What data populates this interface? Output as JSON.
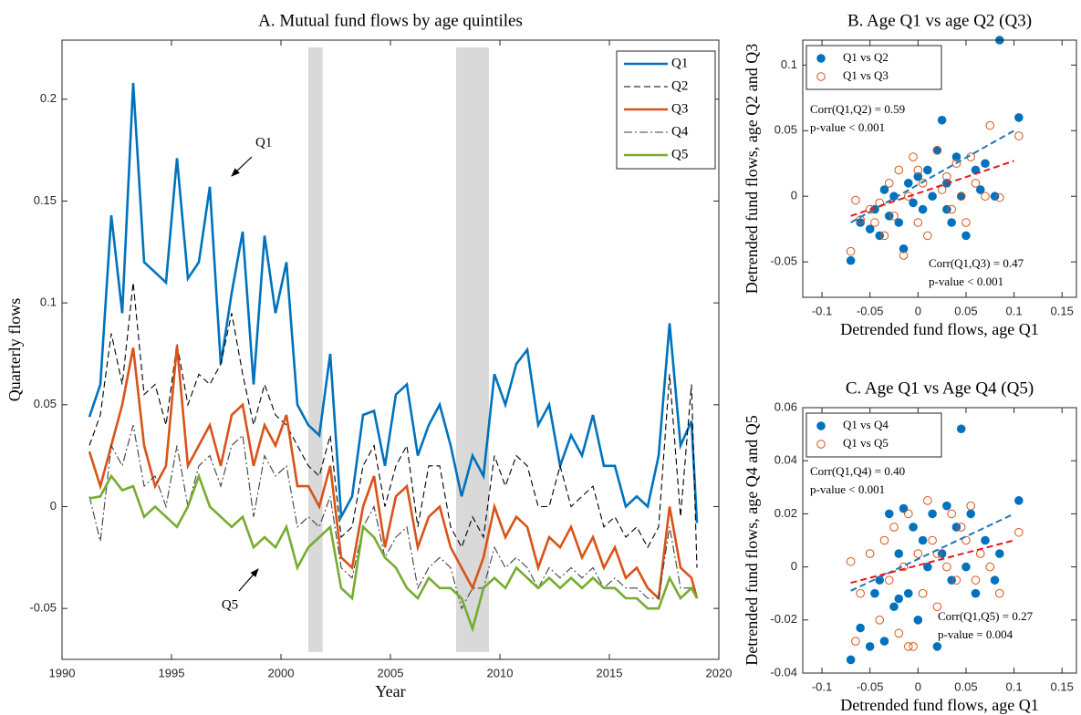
{
  "chart_data": [
    {
      "type": "line",
      "title": "A. Mutual fund flows by age quintiles",
      "xlabel": "Year",
      "ylabel": "Quarterly flows",
      "xlim": [
        1990,
        2020
      ],
      "xticks": [
        1990,
        1995,
        2000,
        2005,
        2010,
        2015,
        2020
      ],
      "ylim": [
        -0.075,
        0.229
      ],
      "yticks": [
        -0.05,
        0,
        0.05,
        0.1,
        0.15,
        0.2
      ],
      "legend": "upper right",
      "shaded_periods": [
        [
          2001.25,
          2001.9
        ],
        [
          2008,
          2009.5
        ]
      ],
      "annotations": [
        "Q1",
        "Q5"
      ],
      "x": [
        1991.25,
        1991.75,
        1992.25,
        1992.75,
        1993.25,
        1993.75,
        1994.25,
        1994.75,
        1995.25,
        1995.75,
        1996.25,
        1996.75,
        1997.25,
        1997.75,
        1998.25,
        1998.75,
        1999.25,
        1999.75,
        2000.25,
        2000.75,
        2001.25,
        2001.75,
        2002.25,
        2002.75,
        2003.25,
        2003.75,
        2004.25,
        2004.75,
        2005.25,
        2005.75,
        2006.25,
        2006.75,
        2007.25,
        2007.75,
        2008.25,
        2008.75,
        2009.25,
        2009.75,
        2010.25,
        2010.75,
        2011.25,
        2011.75,
        2012.25,
        2012.75,
        2013.25,
        2013.75,
        2014.25,
        2014.75,
        2015.25,
        2015.75,
        2016.25,
        2016.75,
        2017.25,
        2017.75,
        2018.25,
        2018.75,
        2019
      ],
      "series": [
        {
          "name": "Q1",
          "color": "#0072bd",
          "line_style": "solid",
          "values": [
            0.044,
            0.06,
            0.143,
            0.095,
            0.208,
            0.12,
            0.115,
            0.11,
            0.171,
            0.112,
            0.12,
            0.157,
            0.07,
            0.105,
            0.135,
            0.06,
            0.133,
            0.095,
            0.12,
            0.05,
            0.04,
            0.035,
            0.075,
            -0.005,
            0.005,
            0.045,
            0.047,
            0.02,
            0.055,
            0.06,
            0.025,
            0.04,
            0.05,
            0.03,
            0.005,
            0.025,
            0.015,
            0.065,
            0.05,
            0.07,
            0.077,
            0.04,
            0.05,
            0.02,
            0.035,
            0.025,
            0.045,
            0.02,
            0.02,
            0.0,
            0.005,
            0.0,
            0.025,
            0.09,
            0.03,
            0.042,
            -0.008
          ]
        },
        {
          "name": "Q2",
          "color": "#000000",
          "line_style": "dashed",
          "values": [
            0.03,
            0.045,
            0.085,
            0.06,
            0.11,
            0.055,
            0.06,
            0.04,
            0.08,
            0.05,
            0.065,
            0.06,
            0.07,
            0.095,
            0.065,
            0.04,
            0.06,
            0.045,
            0.04,
            0.03,
            0.02,
            0.015,
            0.035,
            -0.015,
            -0.01,
            0.02,
            0.03,
            0.0,
            0.02,
            0.03,
            -0.01,
            0.02,
            0.02,
            -0.01,
            -0.02,
            -0.005,
            -0.015,
            0.025,
            0.01,
            0.025,
            0.02,
            0.0,
            0.0,
            0.02,
            0.0,
            0.005,
            0.01,
            -0.01,
            -0.005,
            -0.015,
            -0.01,
            -0.02,
            -0.01,
            0.065,
            -0.005,
            0.06,
            -0.03
          ]
        },
        {
          "name": "Q3",
          "color": "#d95319",
          "line_style": "solid",
          "values": [
            0.027,
            0.01,
            0.03,
            0.05,
            0.078,
            0.03,
            0.01,
            0.02,
            0.079,
            0.02,
            0.03,
            0.04,
            0.02,
            0.045,
            0.05,
            0.02,
            0.04,
            0.03,
            0.045,
            0.01,
            0.01,
            0.0,
            0.02,
            -0.025,
            -0.03,
            0.0,
            0.015,
            -0.02,
            0.005,
            0.01,
            -0.02,
            -0.005,
            0.0,
            -0.02,
            -0.03,
            -0.04,
            -0.025,
            0.0,
            -0.015,
            -0.005,
            -0.01,
            -0.03,
            -0.015,
            -0.02,
            -0.01,
            -0.025,
            -0.015,
            -0.03,
            -0.02,
            -0.035,
            -0.03,
            -0.04,
            -0.045,
            0.0,
            -0.03,
            -0.035,
            -0.045
          ]
        },
        {
          "name": "Q4",
          "color": "#404040",
          "line_style": "dash-dot",
          "values": [
            0.005,
            -0.017,
            0.03,
            0.02,
            0.04,
            0.01,
            0.015,
            0.0,
            0.03,
            0.0,
            0.02,
            0.025,
            0.01,
            0.03,
            0.035,
            -0.005,
            0.025,
            0.015,
            0.02,
            -0.01,
            -0.005,
            -0.01,
            0.005,
            -0.03,
            -0.035,
            -0.01,
            0.0,
            -0.025,
            -0.015,
            -0.01,
            -0.04,
            -0.03,
            -0.025,
            -0.03,
            -0.05,
            -0.04,
            -0.04,
            -0.02,
            -0.03,
            -0.025,
            -0.03,
            -0.04,
            -0.03,
            -0.035,
            -0.03,
            -0.035,
            -0.03,
            -0.04,
            -0.035,
            -0.04,
            -0.04,
            -0.045,
            -0.045,
            -0.01,
            -0.04,
            -0.04,
            -0.045
          ]
        },
        {
          "name": "Q5",
          "color": "#77ac30",
          "line_style": "solid",
          "values": [
            0.004,
            0.005,
            0.015,
            0.008,
            0.01,
            -0.005,
            0.0,
            -0.005,
            -0.01,
            0.0,
            0.015,
            0.0,
            -0.005,
            -0.01,
            -0.005,
            -0.02,
            -0.015,
            -0.02,
            -0.01,
            -0.03,
            -0.02,
            -0.015,
            -0.01,
            -0.04,
            -0.045,
            -0.01,
            -0.015,
            -0.025,
            -0.03,
            -0.04,
            -0.045,
            -0.035,
            -0.04,
            -0.04,
            -0.045,
            -0.06,
            -0.04,
            -0.035,
            -0.04,
            -0.03,
            -0.035,
            -0.04,
            -0.035,
            -0.04,
            -0.035,
            -0.04,
            -0.035,
            -0.04,
            -0.04,
            -0.045,
            -0.045,
            -0.05,
            -0.05,
            -0.035,
            -0.045,
            -0.04,
            -0.045
          ]
        }
      ]
    },
    {
      "type": "scatter",
      "title": "B. Age Q1 vs age Q2 (Q3)",
      "xlabel": "Detrended fund flows, age Q1",
      "ylabel": "Detrended fund flows, age Q2 and Q3",
      "xlim": [
        -0.12,
        0.165
      ],
      "xticks": [
        -0.1,
        -0.05,
        0,
        0.05,
        0.1,
        0.15
      ],
      "ylim": [
        -0.077,
        0.119
      ],
      "yticks": [
        -0.05,
        0,
        0.05,
        0.1
      ],
      "legend": "upper left",
      "annotations": [
        "Corr(Q1,Q2) = 0.59",
        "p-value < 0.001",
        "Corr(Q1,Q3) = 0.47",
        "p-value < 0.001"
      ],
      "series": [
        {
          "name": "Q1 vs Q2",
          "color": "#0072bd",
          "marker": "filled",
          "x": [
            -0.07,
            -0.06,
            -0.05,
            -0.045,
            -0.04,
            -0.03,
            -0.025,
            -0.02,
            -0.015,
            -0.01,
            -0.005,
            0,
            0.005,
            0.01,
            0.015,
            0.02,
            0.025,
            0.03,
            0.035,
            0.04,
            0.045,
            0.05,
            0.06,
            0.065,
            0.07,
            0.08,
            0.085,
            0.105,
            -0.035,
            0.03
          ],
          "values": [
            -0.049,
            -0.02,
            -0.025,
            -0.01,
            -0.03,
            -0.015,
            0.0,
            -0.02,
            -0.04,
            0.01,
            -0.005,
            0.015,
            -0.01,
            0.02,
            0.0,
            0.035,
            0.058,
            0.01,
            -0.02,
            0.03,
            0.0,
            -0.03,
            0.02,
            0.005,
            0.025,
            0.0,
            0.119,
            0.06,
            0.005,
            -0.01
          ],
          "fit": {
            "x": [
              -0.07,
              0.1
            ],
            "y": [
              -0.02,
              0.05
            ]
          }
        },
        {
          "name": "Q1 vs Q3",
          "color": "#d95319",
          "marker": "open",
          "x": [
            -0.07,
            -0.065,
            -0.06,
            -0.05,
            -0.045,
            -0.04,
            -0.03,
            -0.025,
            -0.02,
            -0.015,
            -0.01,
            -0.005,
            0,
            0.005,
            0.01,
            0.02,
            0.025,
            0.03,
            0.035,
            0.04,
            0.045,
            0.05,
            0.055,
            0.06,
            0.07,
            0.075,
            0.085,
            0.105,
            0.0,
            -0.035
          ],
          "values": [
            -0.042,
            -0.003,
            -0.018,
            -0.01,
            -0.02,
            -0.005,
            0.01,
            -0.015,
            0.02,
            -0.045,
            0.0,
            0.03,
            -0.02,
            0.01,
            -0.03,
            0.035,
            0.005,
            0.015,
            -0.01,
            0.025,
            0.0,
            -0.02,
            0.03,
            0.01,
            0.0,
            0.054,
            -0.001,
            0.046,
            0.02,
            -0.03
          ],
          "fit": {
            "x": [
              -0.07,
              0.1
            ],
            "y": [
              -0.015,
              0.027
            ]
          }
        }
      ]
    },
    {
      "type": "scatter",
      "title": "C. Age Q1 vs Age Q4 (Q5)",
      "xlabel": "Detrended fund flows, age Q1",
      "ylabel": "Detrended fund flows, age Q4 and Q5",
      "xlim": [
        -0.12,
        0.165
      ],
      "xticks": [
        -0.1,
        -0.05,
        0,
        0.05,
        0.1,
        0.15
      ],
      "ylim": [
        -0.04,
        0.06
      ],
      "yticks": [
        -0.04,
        -0.02,
        0,
        0.02,
        0.04,
        0.06
      ],
      "legend": "upper left",
      "annotations": [
        "Corr(Q1,Q4) = 0.40",
        "p-value < 0.001",
        "Corr(Q1,Q5) = 0.27",
        "p-value = 0.004"
      ],
      "series": [
        {
          "name": "Q1 vs Q4",
          "color": "#0072bd",
          "marker": "filled",
          "x": [
            -0.07,
            -0.06,
            -0.05,
            -0.045,
            -0.04,
            -0.035,
            -0.03,
            -0.025,
            -0.02,
            -0.015,
            -0.01,
            -0.005,
            0,
            0.005,
            0.01,
            0.015,
            0.02,
            0.025,
            0.03,
            0.035,
            0.04,
            0.045,
            0.05,
            0.055,
            0.06,
            0.07,
            0.08,
            0.085,
            0.105,
            -0.02
          ],
          "values": [
            -0.035,
            -0.023,
            -0.03,
            -0.01,
            -0.005,
            -0.028,
            0.02,
            -0.015,
            0.005,
            0.022,
            -0.01,
            0.015,
            -0.02,
            0.01,
            0.0,
            0.02,
            -0.03,
            0.005,
            0.023,
            -0.005,
            0.015,
            0.052,
            0.0,
            0.02,
            -0.01,
            0.01,
            -0.005,
            0.005,
            0.025,
            -0.012
          ],
          "fit": {
            "x": [
              -0.07,
              0.1
            ],
            "y": [
              -0.009,
              0.02
            ]
          }
        },
        {
          "name": "Q1 vs Q5",
          "color": "#d95319",
          "marker": "open",
          "x": [
            -0.07,
            -0.065,
            -0.06,
            -0.05,
            -0.04,
            -0.035,
            -0.03,
            -0.025,
            -0.02,
            -0.015,
            -0.01,
            -0.005,
            0,
            0.005,
            0.01,
            0.015,
            0.02,
            0.03,
            0.035,
            0.04,
            0.045,
            0.05,
            0.055,
            0.06,
            0.065,
            0.075,
            0.085,
            0.105,
            -0.01,
            0.02
          ],
          "values": [
            0.002,
            -0.028,
            -0.01,
            0.005,
            -0.02,
            0.01,
            -0.005,
            0.015,
            -0.025,
            0.0,
            0.02,
            -0.03,
            0.005,
            -0.01,
            0.025,
            0.01,
            -0.015,
            0.0,
            0.02,
            -0.005,
            0.015,
            0.01,
            0.023,
            -0.005,
            0.005,
            0.0,
            -0.01,
            0.013,
            -0.03,
            0.005
          ],
          "fit": {
            "x": [
              -0.07,
              0.1
            ],
            "y": [
              -0.006,
              0.01
            ]
          }
        }
      ]
    }
  ]
}
